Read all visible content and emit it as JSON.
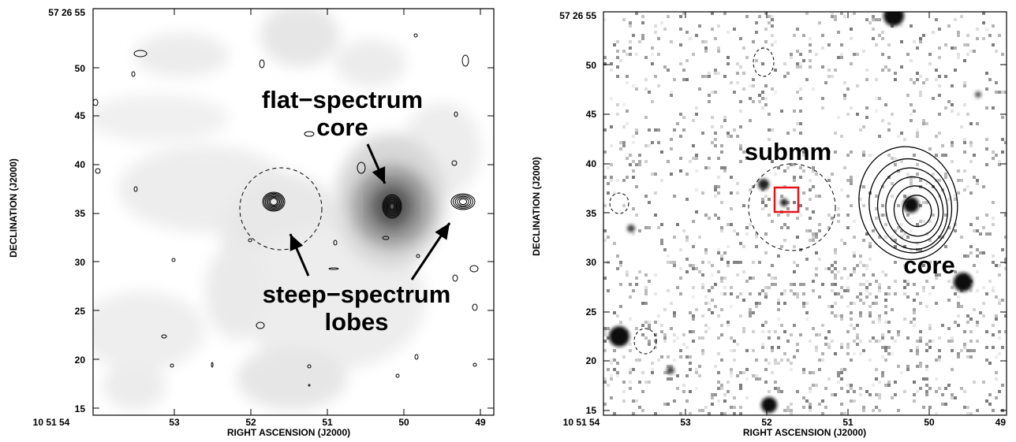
{
  "figure": {
    "left_panel": {
      "name": "left",
      "xlabel": "RIGHT ASCENSION (J2000)",
      "ylabel": "DECLINATION (J2000)",
      "xticks": [
        "10 51 54",
        "53",
        "52",
        "51",
        "50",
        "49"
      ],
      "yticks": [
        "57 26 55",
        "50",
        "45",
        "40",
        "35",
        "30",
        "25",
        "20",
        "15"
      ],
      "annotations": {
        "flat_line1": "flat−spectrum",
        "flat_line2": "core",
        "steep_line1": "steep−spectrum",
        "steep_line2": "lobes"
      }
    },
    "right_panel": {
      "name": "right",
      "xlabel": "RIGHT ASCENSION (J2000)",
      "ylabel": "DECLINATION (J2000)",
      "xticks": [
        "10 51 54",
        "53",
        "52",
        "51",
        "50",
        "49"
      ],
      "yticks": [
        "57 26 55",
        "50",
        "45",
        "40",
        "35",
        "30",
        "25",
        "20",
        "15"
      ],
      "annotations": {
        "submm": "submm",
        "core": "core"
      },
      "highlight_color": "#e8141c"
    }
  }
}
